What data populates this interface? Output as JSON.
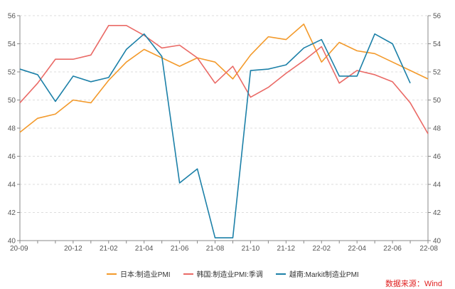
{
  "chart_data": {
    "type": "line",
    "x": [
      "20-09",
      "20-10",
      "20-11",
      "20-12",
      "21-01",
      "21-02",
      "21-03",
      "21-04",
      "21-05",
      "21-06",
      "21-07",
      "21-08",
      "21-09",
      "21-10",
      "21-11",
      "21-12",
      "22-01",
      "22-02",
      "22-03",
      "22-04",
      "22-05",
      "22-06",
      "22-07",
      "22-08"
    ],
    "x_tick_labels": [
      "20-09",
      "20-12",
      "21-02",
      "21-04",
      "21-06",
      "21-08",
      "21-10",
      "21-12",
      "22-02",
      "22-04",
      "22-06",
      "22-08"
    ],
    "ylim": [
      40,
      56
    ],
    "y_ticks": [
      40,
      42,
      44,
      46,
      48,
      50,
      52,
      54,
      56
    ],
    "dual_y_axis_same_scale": true,
    "grid": "horizontal dashed",
    "legend_position": "bottom",
    "series": [
      {
        "name": "日本:制造业PMI",
        "color": "#f39a2b",
        "values": [
          47.7,
          48.7,
          49.0,
          50.0,
          49.8,
          51.4,
          52.7,
          53.6,
          53.0,
          52.4,
          53.0,
          52.7,
          51.5,
          53.2,
          54.5,
          54.3,
          55.4,
          52.7,
          54.1,
          53.5,
          53.3,
          52.7,
          52.1,
          51.5
        ]
      },
      {
        "name": "韩国:制造业PMI:季调",
        "color": "#ea6a66",
        "values": [
          49.8,
          51.2,
          52.9,
          52.9,
          53.2,
          55.3,
          55.3,
          54.6,
          53.7,
          53.9,
          53.0,
          51.2,
          52.4,
          50.2,
          50.9,
          51.9,
          52.8,
          53.8,
          51.2,
          52.1,
          51.8,
          51.3,
          49.8,
          47.6
        ]
      },
      {
        "name": "越南:Markit制造业PMI",
        "color": "#1c80a8",
        "values": [
          52.2,
          51.8,
          49.9,
          51.7,
          51.3,
          51.6,
          53.6,
          54.7,
          53.1,
          44.1,
          45.1,
          40.2,
          40.2,
          52.1,
          52.2,
          52.5,
          53.7,
          54.3,
          51.7,
          51.7,
          54.7,
          54.0,
          51.2,
          null
        ]
      }
    ]
  },
  "source_label": "数据来源：Wind"
}
